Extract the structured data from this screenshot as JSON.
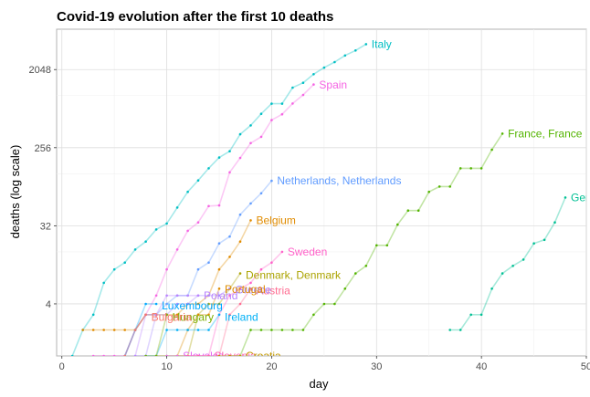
{
  "chart_data": {
    "type": "line",
    "title": "Covid-19 evolution after the first 10 deaths",
    "xlabel": "day",
    "ylabel": "deaths (log scale)",
    "x_scale": "linear",
    "y_scale": "log2",
    "xlim": [
      -0.5,
      50
    ],
    "ylim": [
      1,
      6000
    ],
    "x_ticks": [
      0,
      10,
      20,
      30,
      40,
      50
    ],
    "x_tick_labels": [
      "0",
      "10",
      "20",
      "30",
      "40",
      "50"
    ],
    "y_ticks": [
      4,
      32,
      256,
      2048
    ],
    "y_tick_labels": [
      "4",
      "32",
      "256",
      "2048"
    ],
    "grid": true,
    "legend": "none (series labelled at line ends)",
    "series": [
      {
        "name": "Italy",
        "color": "#00BFC4",
        "label_at": [
          29,
          4000
        ],
        "points": [
          [
            1,
            1
          ],
          [
            2,
            2
          ],
          [
            3,
            3
          ],
          [
            4,
            7
          ],
          [
            5,
            10
          ],
          [
            6,
            12
          ],
          [
            7,
            17
          ],
          [
            8,
            21
          ],
          [
            9,
            29
          ],
          [
            10,
            34
          ],
          [
            11,
            52
          ],
          [
            12,
            79
          ],
          [
            13,
            107
          ],
          [
            14,
            148
          ],
          [
            15,
            197
          ],
          [
            16,
            233
          ],
          [
            17,
            366
          ],
          [
            18,
            463
          ],
          [
            19,
            631
          ],
          [
            20,
            827
          ],
          [
            21,
            827
          ],
          [
            22,
            1266
          ],
          [
            23,
            1441
          ],
          [
            24,
            1809
          ],
          [
            25,
            2158
          ],
          [
            26,
            2503
          ],
          [
            27,
            2978
          ],
          [
            28,
            3405
          ],
          [
            29,
            4032
          ]
        ]
      },
      {
        "name": "Spain",
        "color": "#F564E3",
        "label_at": [
          24,
          1370
        ],
        "points": [
          [
            3,
            1
          ],
          [
            4,
            1
          ],
          [
            5,
            1
          ],
          [
            6,
            1
          ],
          [
            7,
            2
          ],
          [
            8,
            3
          ],
          [
            9,
            5
          ],
          [
            10,
            10
          ],
          [
            11,
            17
          ],
          [
            12,
            28
          ],
          [
            13,
            35
          ],
          [
            14,
            54
          ],
          [
            15,
            55
          ],
          [
            16,
            133
          ],
          [
            17,
            195
          ],
          [
            18,
            289
          ],
          [
            19,
            342
          ],
          [
            20,
            533
          ],
          [
            21,
            623
          ],
          [
            22,
            830
          ],
          [
            23,
            1043
          ],
          [
            24,
            1375
          ]
        ]
      },
      {
        "name": "France, France",
        "color": "#53B400",
        "label_at": [
          42,
          372
        ],
        "points": [
          [
            16,
            1
          ],
          [
            17,
            1
          ],
          [
            18,
            2
          ],
          [
            19,
            2
          ],
          [
            20,
            2
          ],
          [
            21,
            2
          ],
          [
            22,
            2
          ],
          [
            23,
            2
          ],
          [
            24,
            3
          ],
          [
            25,
            4
          ],
          [
            26,
            4
          ],
          [
            27,
            6
          ],
          [
            28,
            9
          ],
          [
            29,
            11
          ],
          [
            30,
            19
          ],
          [
            31,
            19
          ],
          [
            32,
            33
          ],
          [
            33,
            48
          ],
          [
            34,
            48
          ],
          [
            35,
            79
          ],
          [
            36,
            91
          ],
          [
            37,
            91
          ],
          [
            38,
            148
          ],
          [
            39,
            148
          ],
          [
            40,
            148
          ],
          [
            41,
            243
          ],
          [
            42,
            372
          ]
        ]
      },
      {
        "name": "Netherlands, Netherlands",
        "color": "#619CFF",
        "label_at": [
          20,
          106
        ],
        "points": [
          [
            6,
            1
          ],
          [
            7,
            2
          ],
          [
            8,
            3
          ],
          [
            9,
            3
          ],
          [
            10,
            4
          ],
          [
            11,
            5
          ],
          [
            12,
            5
          ],
          [
            13,
            10
          ],
          [
            14,
            12
          ],
          [
            15,
            20
          ],
          [
            16,
            24
          ],
          [
            17,
            43
          ],
          [
            18,
            58
          ],
          [
            19,
            76
          ],
          [
            20,
            106
          ]
        ]
      },
      {
        "name": "Germany",
        "color": "#00C094",
        "label_at": [
          48,
          68
        ],
        "points": [
          [
            37,
            2
          ],
          [
            38,
            2
          ],
          [
            39,
            3
          ],
          [
            40,
            3
          ],
          [
            41,
            6
          ],
          [
            42,
            9
          ],
          [
            43,
            11
          ],
          [
            44,
            13
          ],
          [
            45,
            20
          ],
          [
            46,
            22
          ],
          [
            47,
            35
          ],
          [
            48,
            68
          ]
        ]
      },
      {
        "name": "Belgium",
        "color": "#E08B00",
        "label_at": [
          18,
          37
        ],
        "points": [
          [
            2,
            2
          ],
          [
            3,
            2
          ],
          [
            4,
            2
          ],
          [
            5,
            2
          ],
          [
            6,
            2
          ],
          [
            7,
            2
          ],
          [
            8,
            3
          ],
          [
            9,
            3
          ],
          [
            10,
            3
          ],
          [
            11,
            3
          ],
          [
            12,
            4
          ],
          [
            13,
            4
          ],
          [
            14,
            5
          ],
          [
            15,
            10
          ],
          [
            16,
            14
          ],
          [
            17,
            21
          ],
          [
            18,
            37
          ]
        ]
      },
      {
        "name": "Sweden",
        "color": "#FF61C9",
        "label_at": [
          21,
          16
        ],
        "points": [
          [
            11,
            1
          ],
          [
            12,
            1
          ],
          [
            13,
            1
          ],
          [
            14,
            1
          ],
          [
            15,
            3
          ],
          [
            16,
            5
          ],
          [
            17,
            6
          ],
          [
            18,
            7
          ],
          [
            19,
            10
          ],
          [
            20,
            12
          ],
          [
            21,
            16
          ]
        ]
      },
      {
        "name": "Denmark, Denmark",
        "color": "#ABA300",
        "label_at": [
          17,
          8.6
        ],
        "points": [
          [
            9,
            1
          ],
          [
            10,
            1
          ],
          [
            11,
            1
          ],
          [
            12,
            1
          ],
          [
            13,
            3
          ],
          [
            14,
            4
          ],
          [
            15,
            4
          ],
          [
            16,
            6
          ],
          [
            17,
            9
          ]
        ]
      },
      {
        "name": "Austria",
        "color": "#FF6C91",
        "label_at": [
          18,
          5.7
        ],
        "points": [
          [
            12,
            1
          ],
          [
            13,
            1
          ],
          [
            14,
            1
          ],
          [
            15,
            1
          ],
          [
            16,
            3
          ],
          [
            17,
            4
          ],
          [
            18,
            6
          ]
        ]
      },
      {
        "name": "Greece",
        "color": "#A58AFF",
        "label_at": [
          16,
          5.8
        ],
        "points": [
          [
            7,
            1
          ],
          [
            8,
            1
          ],
          [
            9,
            3
          ],
          [
            10,
            3
          ],
          [
            11,
            4
          ],
          [
            12,
            4
          ],
          [
            13,
            5
          ],
          [
            14,
            5
          ],
          [
            15,
            5
          ],
          [
            16,
            6
          ]
        ]
      },
      {
        "name": "Portugal",
        "color": "#DE8C00",
        "label_at": [
          15,
          5.9
        ],
        "points": [
          [
            11,
            1
          ],
          [
            12,
            2
          ],
          [
            13,
            3
          ],
          [
            14,
            3
          ],
          [
            15,
            6
          ]
        ]
      },
      {
        "name": "Poland",
        "color": "#B983FF",
        "label_at": [
          13,
          5
        ],
        "points": [
          [
            7,
            1
          ],
          [
            8,
            3
          ],
          [
            9,
            3
          ],
          [
            10,
            5
          ],
          [
            11,
            5
          ],
          [
            12,
            5
          ],
          [
            13,
            5
          ]
        ]
      },
      {
        "name": "Ireland",
        "color": "#00B0F6",
        "label_at": [
          15,
          2.8
        ],
        "points": [
          [
            8,
            1
          ],
          [
            9,
            1
          ],
          [
            10,
            2
          ],
          [
            11,
            2
          ],
          [
            12,
            2
          ],
          [
            13,
            2
          ],
          [
            14,
            2
          ],
          [
            15,
            3
          ]
        ]
      },
      {
        "name": "Luxembourg",
        "color": "#00A9FF",
        "label_at": [
          9,
          3.8
        ],
        "points": [
          [
            6,
            1
          ],
          [
            7,
            2
          ],
          [
            8,
            4
          ],
          [
            9,
            4
          ]
        ]
      },
      {
        "name": "Hungary",
        "color": "#7CAE00",
        "label_at": [
          10,
          2.8
        ],
        "points": [
          [
            8,
            1
          ],
          [
            9,
            1
          ],
          [
            10,
            3
          ]
        ]
      },
      {
        "name": "Bulgaria",
        "color": "#F8766D",
        "label_at": [
          8,
          2.8
        ],
        "points": [
          [
            6,
            1
          ],
          [
            7,
            2
          ],
          [
            8,
            3
          ]
        ]
      },
      {
        "name": "Slovakia",
        "color": "#E76BF3",
        "label_at": [
          11,
          1
        ],
        "points": [
          [
            10,
            1
          ],
          [
            11,
            1
          ]
        ]
      },
      {
        "name": "Slovenia",
        "color": "#FF64B0",
        "label_at": [
          14,
          1
        ],
        "points": [
          [
            12,
            1
          ],
          [
            13,
            1
          ],
          [
            14,
            1
          ]
        ]
      },
      {
        "name": "Croatia",
        "color": "#C49A00",
        "label_at": [
          17,
          1
        ],
        "points": [
          [
            15,
            1
          ],
          [
            16,
            1
          ],
          [
            17,
            1
          ]
        ]
      }
    ]
  }
}
